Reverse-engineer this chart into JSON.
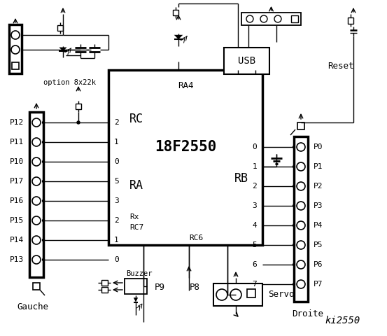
{
  "title": "ki2550",
  "bg_color": "#ffffff",
  "chip_label": "18F2550",
  "chip_sublabel": "RA4",
  "rc_label": "RC",
  "ra_label": "RA",
  "rb_label": "RB",
  "rc7_label": "RC7",
  "rc6_label": "RC6",
  "rx_label": "Rx",
  "left_connector_label": "Gauche",
  "right_connector_label": "Droite",
  "option_label": "option 8x22k",
  "usb_label": "USB",
  "reset_label": "Reset",
  "buzzer_label": "Buzzer",
  "servo_label": "Servo",
  "p9_label": "P9",
  "p8_label": "P8",
  "left_pins": [
    "P12",
    "P11",
    "P10",
    "P17",
    "P16",
    "P15",
    "P14",
    "P13"
  ],
  "right_pins": [
    "P0",
    "P1",
    "P2",
    "P3",
    "P4",
    "P5",
    "P6",
    "P7"
  ],
  "left_pin_nums": [
    "2",
    "1",
    "0",
    "5",
    "3",
    "2",
    "1",
    "0"
  ],
  "right_pin_nums": [
    "0",
    "1",
    "2",
    "3",
    "4",
    "5",
    "6",
    "7"
  ]
}
